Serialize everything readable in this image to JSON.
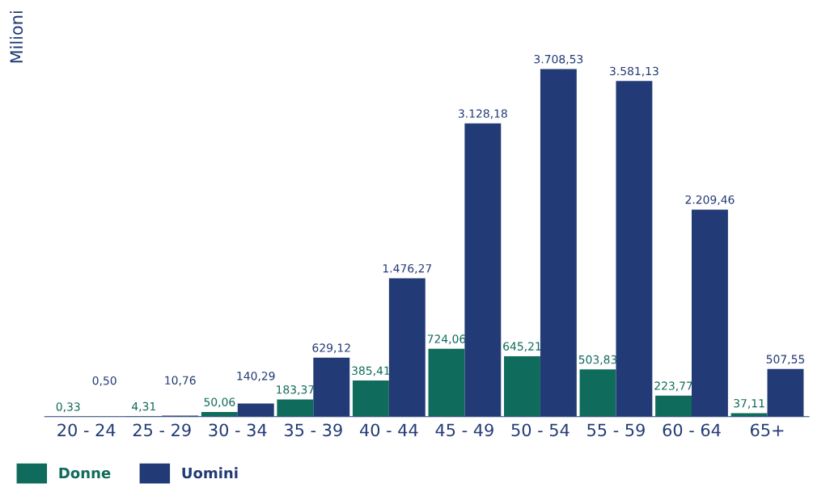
{
  "chart_data": {
    "type": "bar",
    "ylabel": "Milioni",
    "categories": [
      "20 - 24",
      "25 - 29",
      "30 - 34",
      "35 - 39",
      "40 - 44",
      "45 - 49",
      "50 - 54",
      "55 - 59",
      "60 - 64",
      "65+"
    ],
    "series": [
      {
        "name": "Donne",
        "color": "#0f6b5b",
        "values": [
          0.33,
          4.31,
          50.06,
          183.37,
          385.41,
          724.06,
          645.21,
          503.83,
          223.77,
          37.11
        ],
        "value_labels": [
          "0,33",
          "4,31",
          "50,06",
          "183,37",
          "385,41",
          "724,06",
          "645,21",
          "503,83",
          "223,77",
          "37,11"
        ]
      },
      {
        "name": "Uomini",
        "color": "#223a75",
        "values": [
          0.5,
          10.76,
          140.29,
          629.12,
          1476.27,
          3128.18,
          3708.53,
          3581.13,
          2209.46,
          507.55
        ],
        "value_labels": [
          "0,50",
          "10,76",
          "140,29",
          "629,12",
          "1.476,27",
          "3.128,18",
          "3.708,53",
          "3.581,13",
          "2.209,46",
          "507,55"
        ]
      }
    ],
    "legend": "bottom left",
    "grid": false
  }
}
